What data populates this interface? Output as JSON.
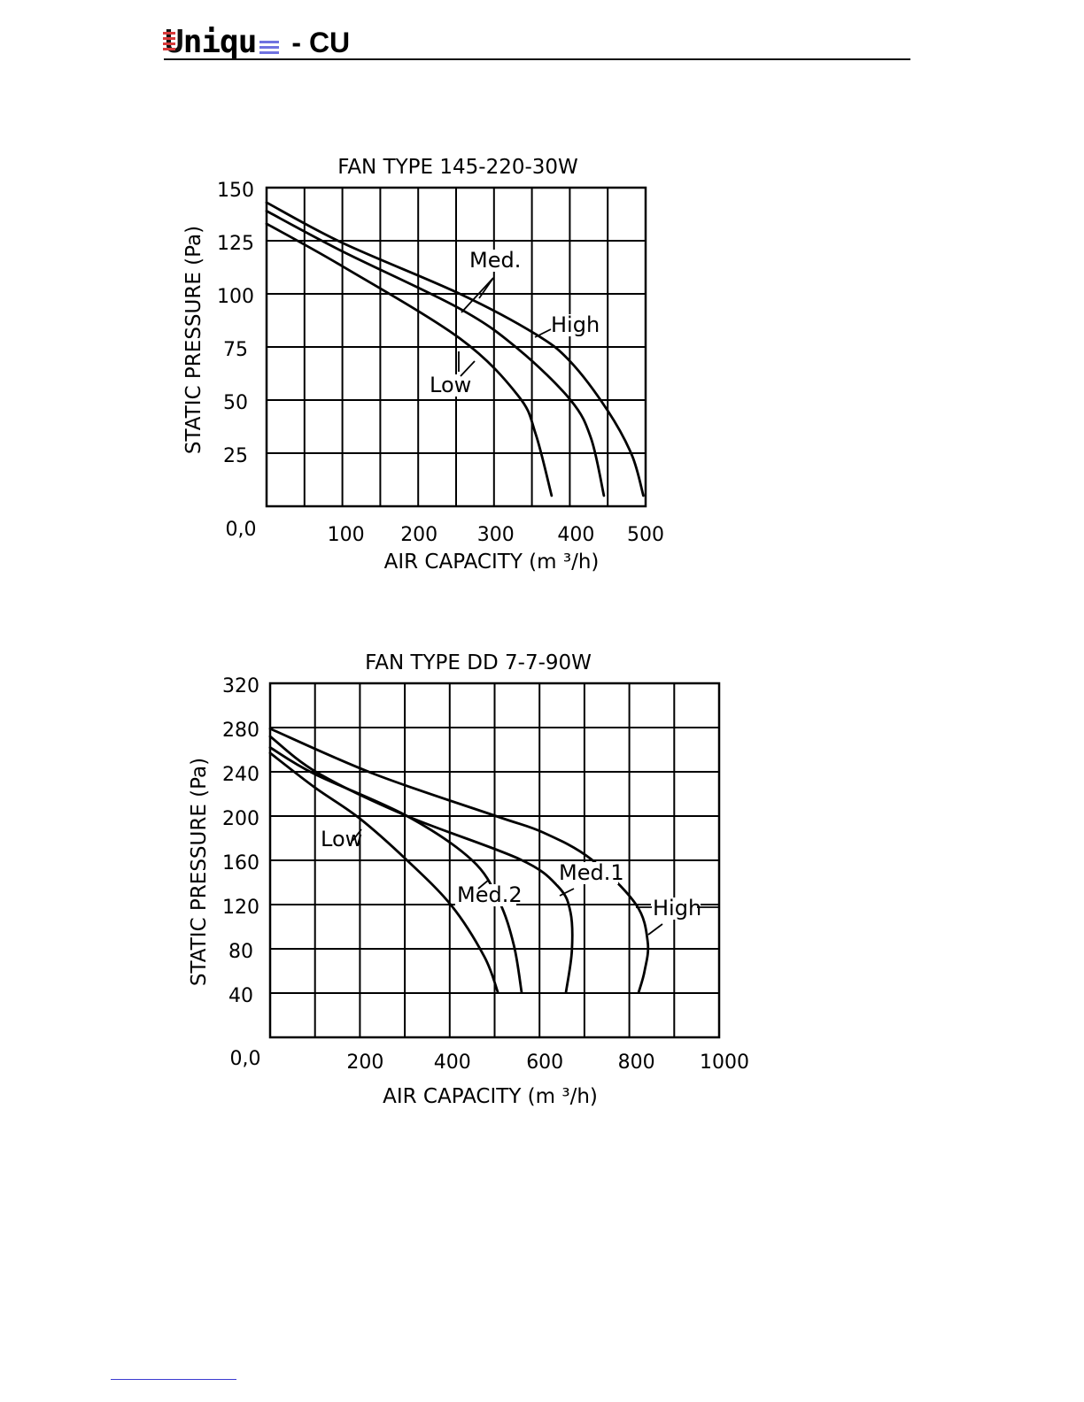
{
  "header": {
    "logo_text": "Unique",
    "logo_first": "U",
    "logo_rest": "niqu",
    "suffix": "- CU"
  },
  "colors": {
    "logo_red": "#d83a3a",
    "logo_blue": "#6f72e0",
    "ink": "#000000"
  },
  "chart_data": [
    {
      "type": "line",
      "title": "FAN  TYPE  145-220-30W",
      "xlabel": "AIR  CAPACITY  (m ³/h)",
      "ylabel": "STATIC  PRESSURE  (Pa)",
      "origin_label": "0,0",
      "xlim": [
        0,
        500
      ],
      "ylim": [
        0,
        150
      ],
      "x_ticks": [
        100,
        200,
        300,
        400,
        500
      ],
      "x_tick_labels": [
        "100",
        "200",
        "300",
        "400",
        "500"
      ],
      "y_ticks": [
        25,
        50,
        75,
        100,
        125,
        150
      ],
      "y_tick_labels": [
        "25",
        "50",
        "75",
        "100",
        "125",
        "150"
      ],
      "grid": true,
      "x_grid_step": 50,
      "y_grid_step": 25,
      "series": [
        {
          "name": "High",
          "x": [
            0,
            100,
            255,
            355,
            401,
            450,
            482,
            497
          ],
          "y": [
            143,
            124,
            100,
            81,
            68,
            45,
            24,
            5
          ]
        },
        {
          "name": "Med.",
          "x": [
            0,
            100,
            255,
            332,
            401,
            428,
            445
          ],
          "y": [
            139,
            120,
            93,
            74,
            50,
            32,
            5
          ]
        },
        {
          "name": "Low",
          "x": [
            0,
            100,
            255,
            332,
            355,
            376
          ],
          "y": [
            133,
            113,
            79,
            52,
            34,
            5
          ]
        }
      ],
      "annotations": [
        "Med.",
        "High",
        "Low"
      ]
    },
    {
      "type": "line",
      "title": "FAN  TYPE  DD  7-7-90W",
      "xlabel": "AIR  CAPACITY  (m ³/h)",
      "ylabel": "STATIC  PRESSURE  (Pa)",
      "origin_label": "0,0",
      "xlim": [
        0,
        1000
      ],
      "ylim": [
        0,
        320
      ],
      "x_ticks": [
        200,
        400,
        600,
        800,
        1000
      ],
      "x_tick_labels": [
        "200",
        "400",
        "600",
        "800",
        "1000"
      ],
      "y_ticks": [
        40,
        80,
        120,
        160,
        200,
        240,
        280,
        320
      ],
      "y_tick_labels": [
        "40",
        "80",
        "120",
        "160",
        "200",
        "240",
        "280",
        "320"
      ],
      "grid": true,
      "x_grid_step": 100,
      "y_grid_step": 40,
      "series": [
        {
          "name": "High",
          "x": [
            0,
            232,
            503,
            609,
            715,
            815,
            841,
            834,
            821
          ],
          "y": [
            279,
            238,
            200,
            185,
            161,
            120,
            86,
            60,
            41
          ]
        },
        {
          "name": "Med.1",
          "x": [
            0,
            106,
            305,
            556,
            642,
            669,
            672,
            659
          ],
          "y": [
            272,
            239,
            200,
            161,
            136,
            113,
            78,
            41
          ]
        },
        {
          "name": "Med.2",
          "x": [
            0,
            99,
            305,
            450,
            510,
            543,
            560
          ],
          "y": [
            262,
            238,
            200,
            160,
            123,
            83,
            41
          ]
        },
        {
          "name": "Low",
          "x": [
            0,
            99,
            199,
            305,
            404,
            477,
            507
          ],
          "y": [
            257,
            226,
            198,
            160,
            119,
            73,
            41
          ]
        }
      ],
      "annotations": [
        "Low",
        "Med.2",
        "Med.1",
        "High"
      ]
    }
  ]
}
